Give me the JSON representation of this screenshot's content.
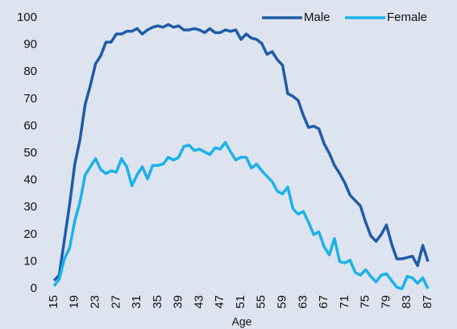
{
  "chart_data": {
    "type": "line",
    "x_label": "Age",
    "x": [
      15,
      16,
      17,
      18,
      19,
      20,
      21,
      22,
      23,
      24,
      25,
      26,
      27,
      28,
      29,
      30,
      31,
      32,
      33,
      34,
      35,
      36,
      37,
      38,
      39,
      40,
      41,
      42,
      43,
      44,
      45,
      46,
      47,
      48,
      49,
      50,
      51,
      52,
      53,
      54,
      55,
      56,
      57,
      58,
      59,
      60,
      61,
      62,
      63,
      64,
      65,
      66,
      67,
      68,
      69,
      70,
      71,
      72,
      73,
      74,
      75,
      76,
      77,
      78,
      79,
      80,
      81,
      82,
      83,
      84,
      85,
      86,
      87
    ],
    "series": [
      {
        "name": "Male",
        "color": "#1f5ca8",
        "values": [
          3,
          5,
          18,
          31,
          46,
          55,
          68,
          75,
          83,
          86,
          91,
          91,
          94,
          94,
          95,
          95,
          96,
          94,
          95.5,
          96.5,
          97,
          96.5,
          97.5,
          96.5,
          97,
          95.5,
          95.5,
          96,
          95.5,
          94.5,
          96,
          94.5,
          94.5,
          95.5,
          95,
          95.5,
          92,
          94,
          92.5,
          92,
          90.5,
          86.5,
          87.5,
          84.5,
          82.5,
          72,
          71,
          69.5,
          64,
          59.5,
          60,
          59,
          53.5,
          50,
          45.5,
          42.5,
          39,
          34.5,
          32.5,
          30.5,
          24.5,
          19.5,
          17.5,
          20,
          23.5,
          16.5,
          11,
          11,
          11.5,
          12,
          8.5,
          16,
          10
        ]
      },
      {
        "name": "Female",
        "color": "#1bb1e9",
        "values": [
          1,
          3.5,
          11,
          15,
          25,
          32,
          42,
          45,
          48,
          44,
          42.5,
          43.5,
          43,
          48,
          45,
          38,
          42,
          45,
          40.5,
          45.5,
          45.5,
          46,
          48.5,
          47.5,
          48.5,
          52.5,
          53,
          51,
          51.5,
          50.5,
          49.5,
          52,
          51.5,
          54,
          50.5,
          47.5,
          48.5,
          48.5,
          44.5,
          46,
          43.5,
          41.5,
          39.5,
          36,
          35,
          37.5,
          29.5,
          27.5,
          28.5,
          24.5,
          20,
          21,
          15.5,
          12.5,
          18.5,
          10,
          9.5,
          10.5,
          6,
          5,
          7,
          4.5,
          2.5,
          5,
          5.5,
          3,
          0.5,
          0,
          4.5,
          4,
          2,
          4,
          0
        ]
      }
    ],
    "xlim": [
      15,
      87
    ],
    "xticks": [
      15,
      19,
      23,
      27,
      31,
      35,
      39,
      43,
      47,
      51,
      55,
      59,
      63,
      67,
      71,
      75,
      79,
      83,
      87
    ],
    "ylim": [
      0,
      100
    ],
    "yticks": [
      0,
      10,
      20,
      30,
      40,
      50,
      60,
      70,
      80,
      90,
      100
    ]
  }
}
